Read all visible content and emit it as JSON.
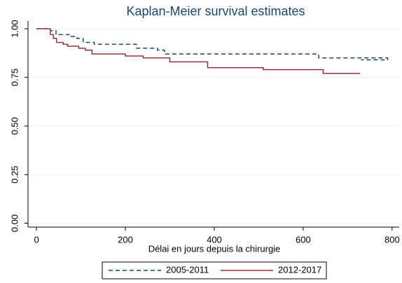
{
  "chart_data": {
    "type": "line",
    "title": "Kaplan-Meier survival estimates",
    "x_label": "Délai en jours depuis la chirurgie",
    "step": "post",
    "xlim": [
      -19,
      816
    ],
    "xticks": [
      0,
      200,
      400,
      600,
      800
    ],
    "ylim": [
      -0.02,
      1.04
    ],
    "yticks": [
      {
        "value": 0,
        "label": "0.00"
      },
      {
        "value": 0.25,
        "label": "0.25"
      },
      {
        "value": 0.5,
        "label": "0.50"
      },
      {
        "value": 0.75,
        "label": "0.75"
      },
      {
        "value": 1,
        "label": "1.00"
      }
    ],
    "grid": true,
    "series": [
      {
        "name": "2005-2011",
        "color": "#1a476f",
        "line_style": "dashed",
        "x": [
          0,
          31,
          44,
          76,
          91,
          105,
          130,
          225,
          272,
          288,
          540,
          635,
          790,
          730
        ],
        "y": [
          1.0,
          0.99,
          0.97,
          0.96,
          0.95,
          0.93,
          0.92,
          0.9,
          0.89,
          0.87,
          0.87,
          0.85,
          0.84,
          0.84
        ]
      },
      {
        "name": "2012-2017",
        "color": "#90353b",
        "line_style": "solid",
        "x": [
          0,
          31,
          38,
          45,
          60,
          70,
          95,
          110,
          125,
          200,
          240,
          300,
          385,
          510,
          645,
          728
        ],
        "y": [
          1.0,
          0.97,
          0.95,
          0.93,
          0.92,
          0.91,
          0.9,
          0.89,
          0.87,
          0.86,
          0.85,
          0.83,
          0.8,
          0.79,
          0.77,
          0.77
        ]
      }
    ]
  }
}
